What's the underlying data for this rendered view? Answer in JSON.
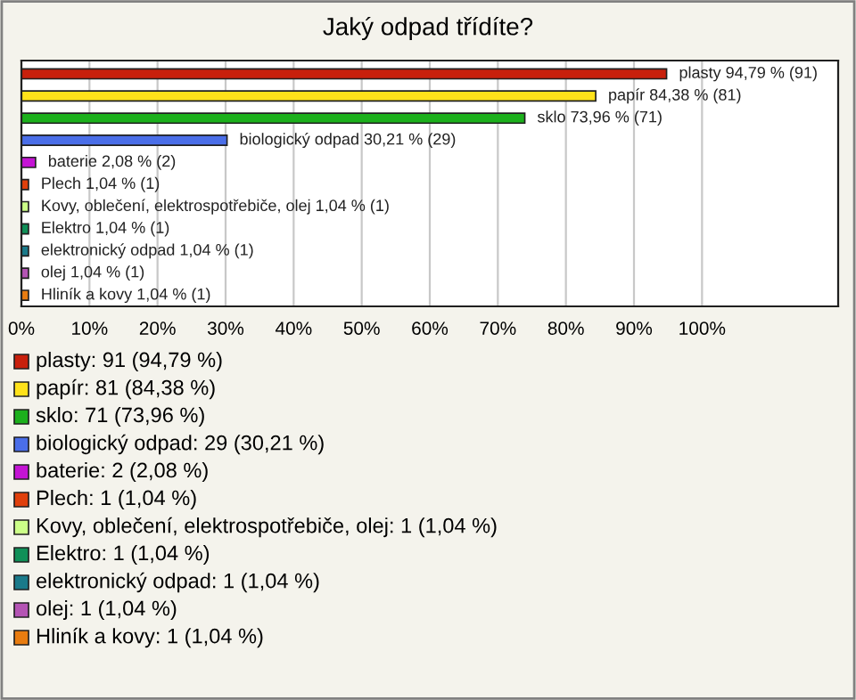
{
  "chart_data": {
    "type": "bar",
    "orientation": "horizontal",
    "title": "Jaký odpad třídíte?",
    "categories": [
      null,
      null,
      null,
      null,
      null,
      null,
      null,
      null,
      null,
      null,
      null
    ],
    "values": [
      94.79,
      84.38,
      73.96,
      30.21,
      2.08,
      1.04,
      1.04,
      1.04,
      1.04,
      1.04,
      1.04
    ],
    "colors": [
      "#c8200c",
      "#ffe21a",
      "#1cb01c",
      "#4a6ee8",
      "#c414d4",
      "#e0400c",
      "#ccff88",
      "#109058",
      "#1a7a8a",
      "#b454b4",
      "#e87c10"
    ],
    "value_labels": [
      "plasty 94,79 % (91)",
      "papír 84,38 % (81)",
      "sklo 73,96 % (71)",
      "biologický odpad 30,21 % (29)",
      "baterie 2,08 % (2)",
      "Plech 1,04 % (1)",
      "Kovy, oblečení, elektrospotřebiče, olej 1,04 % (1)",
      "Elektro 1,04 % (1)",
      "elektronický odpad 1,04 % (1)",
      "olej 1,04 % (1)",
      "Hliník a kovy 1,04 % (1)"
    ],
    "annotations": [
      "plasty: 91 (94,79 %)",
      "papír: 81 (84,38 %)",
      "sklo: 71 (73,96 %)",
      "biologický odpad: 29 (30,21 %)",
      "baterie: 2 (2,08 %)",
      "Plech: 1 (1,04 %)",
      "Kovy, oblečení, elektrospotřebiče, olej: 1 (1,04 %)",
      "Elektro: 1 (1,04 %)",
      "elektronický odpad: 1 (1,04 %)",
      "olej: 1 (1,04 %)",
      "Hliník a kovy: 1 (1,04 %)"
    ],
    "xlim": [
      0,
      120
    ],
    "xticks": [
      {
        "value": 0,
        "label": "0%"
      },
      {
        "value": 10,
        "label": "10%"
      },
      {
        "value": 20,
        "label": "20%"
      },
      {
        "value": 30,
        "label": "30%"
      },
      {
        "value": 40,
        "label": "40%"
      },
      {
        "value": 50,
        "label": "50%"
      },
      {
        "value": 60,
        "label": "60%"
      },
      {
        "value": 70,
        "label": "70%"
      },
      {
        "value": 80,
        "label": "80%"
      },
      {
        "value": 90,
        "label": "90%"
      },
      {
        "value": 100,
        "label": "100%"
      }
    ],
    "grid": "x",
    "tick_labels": "x"
  }
}
